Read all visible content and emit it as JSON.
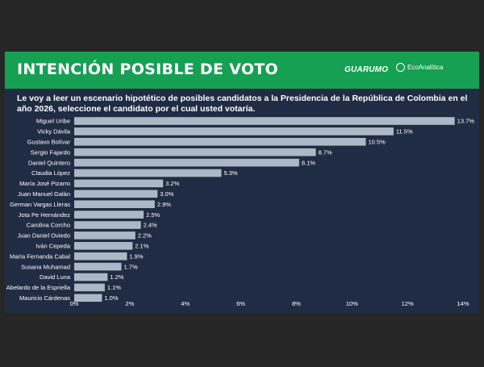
{
  "header": {
    "title": "INTENCIÓN POSIBLE DE VOTO",
    "logo_guarumo": "GUARUMO",
    "logo_eco": "EcoAnalítica"
  },
  "question": "Le voy a leer un escenario hipotético de posibles candidatos a la Presidencia de la República de Colombia en el año 2026, seleccione el candidato por el cual usted votaría.",
  "colors": {
    "header_bg": "#15a053",
    "panel_bg": "#202c44",
    "bar": "#abb8c5"
  },
  "chart_data": {
    "type": "bar",
    "orientation": "horizontal",
    "categories": [
      "Miguel Uribe",
      "Vicky Dávila",
      "Gustavo Bolívar",
      "Sergio Fajardo",
      "Daniel Quintero",
      "Claudia López",
      "María José Pizarro",
      "Juan Manuel Galán",
      "German Vargas Lleras",
      "Jota Pe Hernández",
      "Carolina Corcho",
      "Juan Daniel Oviedo",
      "Iván Cepeda",
      "María Fernanda Cabal",
      "Susana Muhamad",
      "David Luna",
      "Abelardo de la Espriella",
      "Mauricio Cárdenas"
    ],
    "values": [
      13.7,
      11.5,
      10.5,
      8.7,
      8.1,
      5.3,
      3.2,
      3.0,
      2.9,
      2.5,
      2.4,
      2.2,
      2.1,
      1.9,
      1.7,
      1.2,
      1.1,
      1.0
    ],
    "value_labels": [
      "13.7%",
      "11.5%",
      "10.5%",
      "8.7%",
      "8.1%",
      "5.3%",
      "3.2%",
      "3.0%",
      "2.9%",
      "2.5%",
      "2.4%",
      "2.2%",
      "2.1%",
      "1.9%",
      "1.7%",
      "1.2%",
      "1.1%",
      "1.0%"
    ],
    "xticks": [
      "0%",
      "2%",
      "4%",
      "6%",
      "8%",
      "10%",
      "12%",
      "14%"
    ],
    "xlim": [
      0,
      14
    ],
    "grid": false
  }
}
